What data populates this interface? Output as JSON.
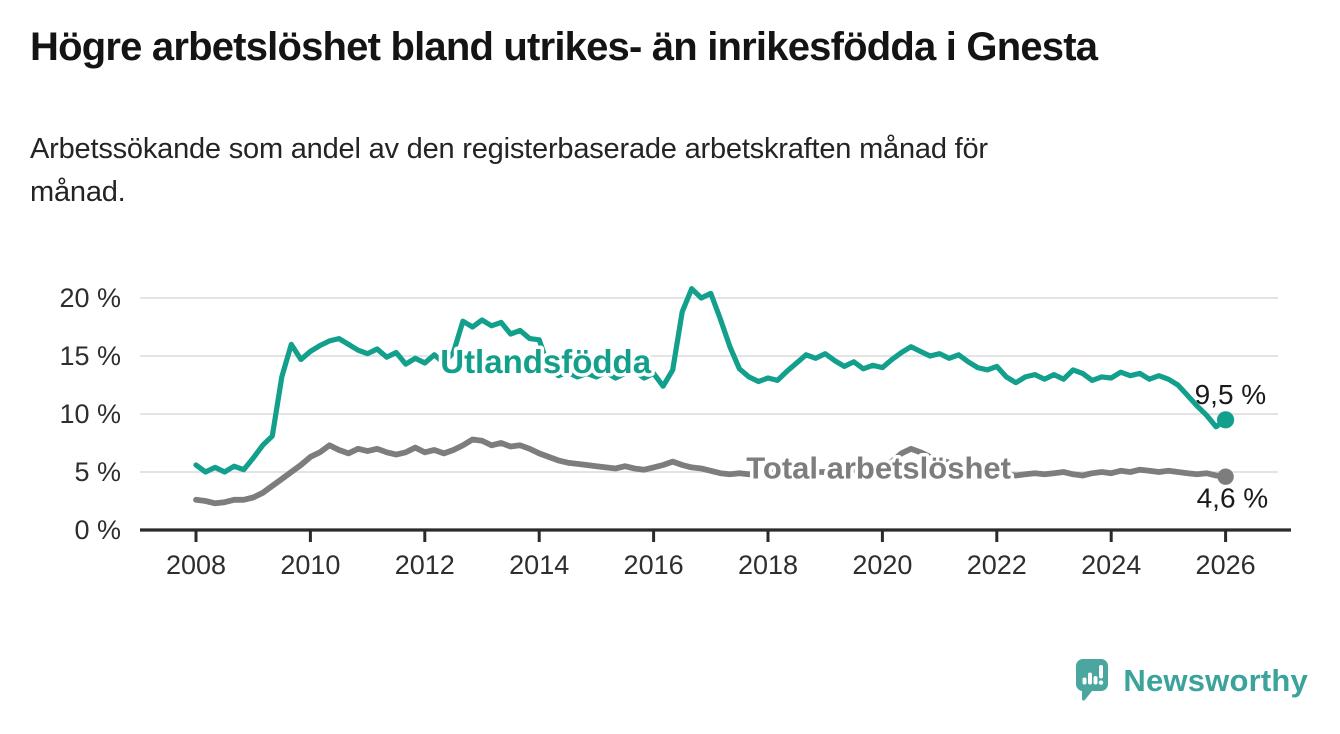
{
  "header": {
    "title": "Högre arbetslöshet bland utrikes- än inrikesfödda i Gnesta",
    "subtitle": "Arbetssökande som andel av den registerbaserade arbetskraften månad för månad.",
    "subtitle_lines": [
      "Arbetssökande som andel av den registerbaserade arbetskraften månad för",
      "månad."
    ]
  },
  "branding": {
    "name": "Newsworthy",
    "logo_icon": "speech-bubble-bar-chart-icon",
    "brand_color": "#3BA39C"
  },
  "colors": {
    "accent_teal": "#12A08D",
    "series_gray": "#7D7D7D",
    "axis": "#2B2B2B",
    "gridline": "#DBDBDB",
    "tick_text": "#2E2E2E",
    "value_label_text": "#1A1A1A",
    "label_halo": "#FFFFFF"
  },
  "chart_data": {
    "type": "line",
    "title": "Högre arbetslöshet bland utrikes- än inrikesfödda i Gnesta",
    "subtitle": "Arbetssökande som andel av den registerbaserade arbetskraften månad för månad.",
    "xlabel": "",
    "ylabel": "",
    "x_axis": {
      "tick_values": [
        2008,
        2010,
        2012,
        2014,
        2016,
        2018,
        2020,
        2022,
        2024,
        2026
      ],
      "tick_labels": [
        "2008",
        "2010",
        "2012",
        "2014",
        "2016",
        "2018",
        "2020",
        "2022",
        "2024",
        "2026"
      ],
      "range": [
        2007.2,
        2027.1
      ]
    },
    "y_axis": {
      "tick_values": [
        0,
        5,
        10,
        15,
        20
      ],
      "tick_labels": [
        "0 %",
        "5 %",
        "10 %",
        "15 %",
        "20 %"
      ],
      "range": [
        0,
        21.6
      ],
      "gridlines": true
    },
    "legend_position": "inline-labels",
    "series": [
      {
        "name": "Utlandsfödda",
        "slug": "utlandsfodda",
        "color": "#12A08D",
        "end_label": "9,5 %",
        "end_value": 9.5,
        "x_start": 2008.0,
        "x_step": 0.166667,
        "values": [
          5.6,
          5.0,
          5.4,
          5.0,
          5.5,
          5.2,
          6.2,
          7.3,
          8.1,
          13.2,
          16.0,
          14.7,
          15.4,
          15.9,
          16.3,
          16.5,
          16.0,
          15.5,
          15.2,
          15.6,
          14.9,
          15.3,
          14.3,
          14.8,
          14.4,
          15.1,
          14.4,
          15.3,
          18.0,
          17.5,
          18.1,
          17.6,
          17.9,
          16.9,
          17.2,
          16.5,
          16.4,
          14.0,
          13.3,
          13.6,
          13.2,
          13.5,
          13.2,
          13.6,
          13.1,
          13.5,
          13.7,
          13.1,
          13.5,
          12.4,
          13.8,
          18.8,
          20.8,
          20.0,
          20.4,
          18.2,
          15.8,
          13.9,
          13.2,
          12.8,
          13.1,
          12.9,
          13.7,
          14.4,
          15.1,
          14.8,
          15.2,
          14.6,
          14.1,
          14.5,
          13.9,
          14.2,
          14.0,
          14.7,
          15.3,
          15.8,
          15.4,
          15.0,
          15.2,
          14.8,
          15.1,
          14.5,
          14.0,
          13.8,
          14.1,
          13.2,
          12.7,
          13.2,
          13.4,
          13.0,
          13.4,
          13.0,
          13.8,
          13.5,
          12.9,
          13.2,
          13.1,
          13.6,
          13.3,
          13.5,
          13.0,
          13.3,
          13.0,
          12.5,
          11.6,
          10.7,
          9.9,
          8.9,
          9.5
        ]
      },
      {
        "name": "Total arbetslöshet",
        "slug": "total-arbetsloshet",
        "color": "#7D7D7D",
        "end_label": "4,6 %",
        "end_value": 4.6,
        "x_start": 2008.0,
        "x_step": 0.166667,
        "values": [
          2.6,
          2.5,
          2.3,
          2.4,
          2.6,
          2.6,
          2.8,
          3.2,
          3.8,
          4.4,
          5.0,
          5.6,
          6.3,
          6.7,
          7.3,
          6.9,
          6.6,
          7.0,
          6.8,
          7.0,
          6.7,
          6.5,
          6.7,
          7.1,
          6.7,
          6.9,
          6.6,
          6.9,
          7.3,
          7.8,
          7.7,
          7.3,
          7.5,
          7.2,
          7.3,
          7.0,
          6.6,
          6.3,
          6.0,
          5.8,
          5.7,
          5.6,
          5.5,
          5.4,
          5.3,
          5.5,
          5.3,
          5.2,
          5.4,
          5.6,
          5.9,
          5.6,
          5.4,
          5.3,
          5.1,
          4.9,
          4.8,
          4.9,
          4.8,
          5.0,
          4.9,
          5.1,
          5.0,
          4.9,
          5.1,
          5.0,
          5.0,
          4.9,
          5.1,
          5.2,
          5.1,
          5.2,
          5.4,
          5.9,
          6.6,
          7.0,
          6.7,
          6.3,
          6.1,
          5.8,
          5.5,
          5.3,
          5.1,
          5.0,
          4.9,
          4.8,
          4.7,
          4.8,
          4.9,
          4.8,
          4.9,
          5.0,
          4.8,
          4.7,
          4.9,
          5.0,
          4.9,
          5.1,
          5.0,
          5.2,
          5.1,
          5.0,
          5.1,
          5.0,
          4.9,
          4.8,
          4.9,
          4.7,
          4.6
        ]
      }
    ]
  }
}
